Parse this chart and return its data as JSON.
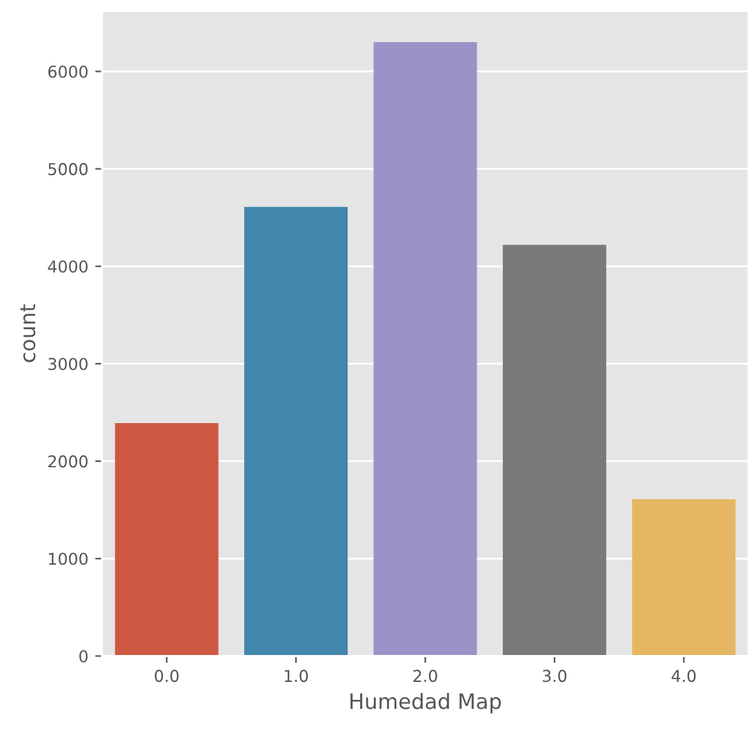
{
  "chart_data": {
    "type": "bar",
    "xlabel": "Humedad Map",
    "ylabel": "count",
    "categories": [
      "0.0",
      "1.0",
      "2.0",
      "3.0",
      "4.0"
    ],
    "values": [
      2390,
      4610,
      6300,
      4220,
      1610
    ],
    "colors": [
      "#cd5842",
      "#4285ad",
      "#9b93c8",
      "#797979",
      "#e5b762"
    ],
    "ylim": [
      0,
      6620
    ],
    "yticks": [
      0,
      1000,
      2000,
      3000,
      4000,
      5000,
      6000
    ],
    "grid": "y"
  }
}
